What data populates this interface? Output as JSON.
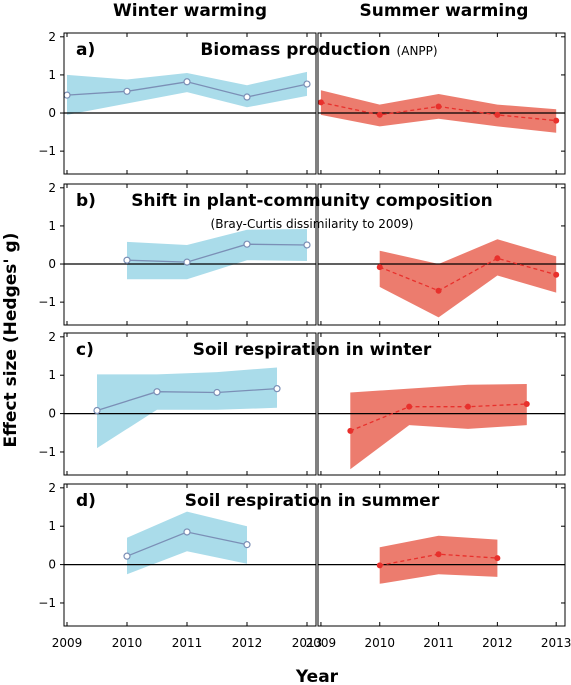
{
  "figure": {
    "column_headers": [
      "Winter warming",
      "Summer warming"
    ],
    "ylabel": "Effect size (Hedges' g)",
    "xlabel": "Year"
  },
  "colors": {
    "winter_band": "#aadcea",
    "winter_line": "#7b8fb6",
    "summer_band": "#ec7c6e",
    "summer_line": "#e8302c",
    "zero_line": "#000000"
  },
  "chart_data": [
    {
      "type": "line",
      "panel_letter": "a)",
      "title": "Biomass production",
      "subtitle": "(ANPP)",
      "ylim": [
        -1.6,
        2.1
      ],
      "yticks": [
        -1,
        0,
        1,
        2
      ],
      "winter": {
        "x": [
          2009,
          2010,
          2011,
          2012,
          2013
        ],
        "y": [
          0.47,
          0.57,
          0.82,
          0.42,
          0.76
        ],
        "lower": [
          -0.05,
          0.25,
          0.55,
          0.15,
          0.45
        ],
        "upper": [
          1.0,
          0.88,
          1.05,
          0.73,
          1.08
        ]
      },
      "summer": {
        "x": [
          2009,
          2010,
          2011,
          2012,
          2013
        ],
        "y": [
          0.28,
          -0.05,
          0.17,
          -0.05,
          -0.2
        ],
        "lower": [
          -0.05,
          -0.35,
          -0.15,
          -0.35,
          -0.52
        ],
        "upper": [
          0.6,
          0.22,
          0.5,
          0.22,
          0.1
        ]
      }
    },
    {
      "type": "line",
      "panel_letter": "b)",
      "title": "Shift in plant-community composition",
      "subtitle": "(Bray-Curtis dissimilarity to 2009)",
      "ylim": [
        -1.6,
        2.1
      ],
      "yticks": [
        -1,
        0,
        1,
        2
      ],
      "winter": {
        "x": [
          2010,
          2011,
          2012,
          2013
        ],
        "y": [
          0.1,
          0.05,
          0.52,
          0.5
        ],
        "lower": [
          -0.4,
          -0.4,
          0.1,
          0.08
        ],
        "upper": [
          0.58,
          0.5,
          0.9,
          0.92
        ]
      },
      "summer": {
        "x": [
          2010,
          2011,
          2012,
          2013
        ],
        "y": [
          -0.08,
          -0.7,
          0.15,
          -0.28
        ],
        "lower": [
          -0.6,
          -1.4,
          -0.3,
          -0.75
        ],
        "upper": [
          0.35,
          0.0,
          0.65,
          0.2
        ]
      }
    },
    {
      "type": "line",
      "panel_letter": "c)",
      "title": "Soil respiration in winter",
      "subtitle": "",
      "ylim": [
        -1.6,
        2.1
      ],
      "yticks": [
        -1,
        0,
        1,
        2
      ],
      "winter": {
        "x": [
          2009.5,
          2010.5,
          2011.5,
          2012.5
        ],
        "y": [
          0.08,
          0.57,
          0.55,
          0.65
        ],
        "lower": [
          -0.9,
          0.1,
          0.1,
          0.15
        ],
        "upper": [
          1.02,
          1.02,
          1.08,
          1.2
        ]
      },
      "summer": {
        "x": [
          2009.5,
          2010.5,
          2011.5,
          2012.5
        ],
        "y": [
          -0.45,
          0.18,
          0.18,
          0.25
        ],
        "lower": [
          -1.45,
          -0.3,
          -0.4,
          -0.3
        ],
        "upper": [
          0.55,
          0.65,
          0.75,
          0.77
        ]
      }
    },
    {
      "type": "line",
      "panel_letter": "d)",
      "title": "Soil respiration in summer",
      "subtitle": "",
      "ylim": [
        -1.6,
        2.1
      ],
      "yticks": [
        -1,
        0,
        1,
        2
      ],
      "xticks": [
        2009,
        2010,
        2011,
        2012,
        2013
      ],
      "winter": {
        "x": [
          2010,
          2011,
          2012
        ],
        "y": [
          0.22,
          0.85,
          0.52
        ],
        "lower": [
          -0.25,
          0.35,
          0.02
        ],
        "upper": [
          0.7,
          1.38,
          1.0
        ]
      },
      "summer": {
        "x": [
          2010,
          2011,
          2012
        ],
        "y": [
          -0.02,
          0.27,
          0.17
        ],
        "lower": [
          -0.5,
          -0.25,
          -0.32
        ],
        "upper": [
          0.45,
          0.75,
          0.65
        ]
      }
    }
  ]
}
